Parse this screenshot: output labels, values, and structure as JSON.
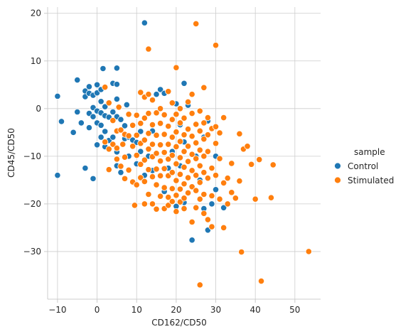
{
  "chart_data": {
    "type": "scatter",
    "xlabel": "CD162/CD50",
    "ylabel": "CD45/CD50",
    "xlim": [
      -12.5,
      56.5
    ],
    "ylim": [
      -40,
      21.3
    ],
    "xticks": [
      -10,
      0,
      10,
      20,
      30,
      40,
      50
    ],
    "yticks": [
      -30,
      -20,
      -10,
      0,
      10,
      20
    ],
    "grid": true,
    "legend": {
      "title": "sample",
      "placement": "right-outside"
    },
    "series": [
      {
        "name": "Control",
        "color": "#1f77b4",
        "points": [
          [
            -10,
            2.6
          ],
          [
            -10,
            -14
          ],
          [
            -9,
            -2.7
          ],
          [
            -6,
            -5
          ],
          [
            -5,
            6
          ],
          [
            -5,
            -0.7
          ],
          [
            -4,
            -3
          ],
          [
            -3,
            3.7
          ],
          [
            -3,
            2.5
          ],
          [
            -3,
            -12.5
          ],
          [
            -2,
            4.6
          ],
          [
            -2,
            3.2
          ],
          [
            -2,
            -1
          ],
          [
            -2,
            -4
          ],
          [
            -1,
            -14.7
          ],
          [
            -1,
            2.8
          ],
          [
            -1,
            0.2
          ],
          [
            -1,
            -1.7
          ],
          [
            0,
            5
          ],
          [
            0,
            3.3
          ],
          [
            0,
            -0.5
          ],
          [
            0,
            -3
          ],
          [
            0,
            -7.6
          ],
          [
            1,
            4
          ],
          [
            1,
            1.5
          ],
          [
            1,
            -0.9
          ],
          [
            1,
            -3.5
          ],
          [
            1,
            -6
          ],
          [
            1.5,
            8.4
          ],
          [
            2,
            0.4
          ],
          [
            2,
            -1.5
          ],
          [
            2,
            -4.8
          ],
          [
            2,
            -8
          ],
          [
            3,
            -1.8
          ],
          [
            3,
            -6.7
          ],
          [
            4,
            5.3
          ],
          [
            4,
            -0.7
          ],
          [
            4,
            -6
          ],
          [
            5,
            8.5
          ],
          [
            5,
            5.1
          ],
          [
            5,
            2
          ],
          [
            5,
            -1.7
          ],
          [
            5,
            -9.1
          ],
          [
            5,
            -12
          ],
          [
            6,
            -2.3
          ],
          [
            6,
            -13.4
          ],
          [
            7,
            -3.6
          ],
          [
            7,
            -6.3
          ],
          [
            7.5,
            0.8
          ],
          [
            8,
            -6
          ],
          [
            8,
            -10
          ],
          [
            9,
            -6.6
          ],
          [
            10,
            -7.1
          ],
          [
            10,
            -11.6
          ],
          [
            11,
            -4.8
          ],
          [
            11,
            -9
          ],
          [
            12,
            18
          ],
          [
            12,
            -6.5
          ],
          [
            12,
            -14
          ],
          [
            13,
            -10
          ],
          [
            14,
            -4.7
          ],
          [
            14,
            -13
          ],
          [
            15,
            3
          ],
          [
            16,
            4
          ],
          [
            17,
            3.2
          ],
          [
            17,
            -17.4
          ],
          [
            18,
            -12.5
          ],
          [
            19,
            -9
          ],
          [
            20,
            1
          ],
          [
            20,
            -5
          ],
          [
            20,
            -20.5
          ],
          [
            21,
            -3.4
          ],
          [
            21,
            -12
          ],
          [
            22,
            5.3
          ],
          [
            22,
            -7
          ],
          [
            22,
            -19.7
          ],
          [
            23,
            0.7
          ],
          [
            24,
            -27.6
          ],
          [
            25,
            -10
          ],
          [
            26,
            -15
          ],
          [
            27,
            -21
          ],
          [
            27,
            -6
          ],
          [
            28,
            -25.5
          ],
          [
            28,
            -2.6
          ],
          [
            29,
            -20
          ],
          [
            30,
            -17
          ],
          [
            30,
            -10
          ],
          [
            32,
            -20.8
          ]
        ]
      },
      {
        "name": "Stimulated",
        "color": "#ff7f0e",
        "points": [
          [
            2,
            4.5
          ],
          [
            2,
            -7
          ],
          [
            3,
            -8.5
          ],
          [
            3,
            1.2
          ],
          [
            3,
            -12.8
          ],
          [
            4,
            -2.5
          ],
          [
            4,
            -7.5
          ],
          [
            5,
            -10.6
          ],
          [
            5,
            -4.7
          ],
          [
            5,
            -8.3
          ],
          [
            5.5,
            0.3
          ],
          [
            6,
            -12.1
          ],
          [
            6,
            -4.5
          ],
          [
            6.5,
            -7.5
          ],
          [
            7,
            -5.4
          ],
          [
            7,
            -10.2
          ],
          [
            7,
            -14.7
          ],
          [
            8,
            -1.2
          ],
          [
            8,
            -5.7
          ],
          [
            8,
            -12.9
          ],
          [
            9,
            -3.5
          ],
          [
            9,
            -7.9
          ],
          [
            9,
            -15.4
          ],
          [
            9.5,
            -20.3
          ],
          [
            10,
            -1.4
          ],
          [
            10,
            -5.6
          ],
          [
            10,
            -9.8
          ],
          [
            10,
            -16
          ],
          [
            11,
            3.4
          ],
          [
            11,
            -3.1
          ],
          [
            11,
            -7.3
          ],
          [
            11,
            -11.7
          ],
          [
            11,
            -14.5
          ],
          [
            12,
            2.4
          ],
          [
            12,
            -2
          ],
          [
            12,
            -6.6
          ],
          [
            12,
            -10.8
          ],
          [
            12,
            -15.3
          ],
          [
            12,
            -20
          ],
          [
            13,
            12.5
          ],
          [
            13,
            3
          ],
          [
            13,
            -1
          ],
          [
            13,
            -5.2
          ],
          [
            13,
            -8.5
          ],
          [
            13,
            -12.8
          ],
          [
            13,
            -18
          ],
          [
            14,
            1.8
          ],
          [
            14,
            -3.4
          ],
          [
            14,
            -7.5
          ],
          [
            14,
            -10.1
          ],
          [
            14,
            -14.3
          ],
          [
            14,
            -20
          ],
          [
            15,
            -0.9
          ],
          [
            15,
            -5.6
          ],
          [
            15,
            -9.4
          ],
          [
            15,
            -12.7
          ],
          [
            15,
            -16
          ],
          [
            15,
            -21.1
          ],
          [
            16,
            0
          ],
          [
            16,
            -3.1
          ],
          [
            16,
            -7.6
          ],
          [
            16,
            -11
          ],
          [
            16,
            -14.1
          ],
          [
            16,
            -18.4
          ],
          [
            17,
            -1.3
          ],
          [
            17,
            -5.4
          ],
          [
            17,
            -9.2
          ],
          [
            17,
            -12.6
          ],
          [
            17,
            -16.6
          ],
          [
            17,
            -21
          ],
          [
            18,
            3.6
          ],
          [
            18,
            -3.7
          ],
          [
            18,
            -7.5
          ],
          [
            18,
            -10.6
          ],
          [
            18,
            -14.1
          ],
          [
            18,
            -18.6
          ],
          [
            18,
            -20.3
          ],
          [
            19,
            1.2
          ],
          [
            19,
            -2.3
          ],
          [
            19,
            -6
          ],
          [
            19,
            -9.8
          ],
          [
            19,
            -13.4
          ],
          [
            19,
            -16.8
          ],
          [
            19,
            -19.5
          ],
          [
            20,
            8.6
          ],
          [
            20,
            -1.2
          ],
          [
            20,
            -4.9
          ],
          [
            20,
            -8
          ],
          [
            20,
            -11.6
          ],
          [
            20,
            -15.1
          ],
          [
            20,
            -18.2
          ],
          [
            20,
            -21.6
          ],
          [
            21,
            0
          ],
          [
            21,
            -3
          ],
          [
            21,
            -6.9
          ],
          [
            21,
            -10.3
          ],
          [
            21,
            -13.8
          ],
          [
            21,
            -16.9
          ],
          [
            21,
            -19.6
          ],
          [
            22,
            -2
          ],
          [
            22,
            -5.5
          ],
          [
            22,
            -9
          ],
          [
            22,
            -12.3
          ],
          [
            22,
            -15.8
          ],
          [
            22,
            -18.8
          ],
          [
            22,
            -21
          ],
          [
            23,
            1.4
          ],
          [
            23,
            -4.3
          ],
          [
            23,
            -7.9
          ],
          [
            23,
            -11.1
          ],
          [
            23,
            -14.5
          ],
          [
            23,
            -17.7
          ],
          [
            24,
            3
          ],
          [
            24,
            -1
          ],
          [
            24,
            -5.8
          ],
          [
            24,
            -9.6
          ],
          [
            24,
            -13
          ],
          [
            24,
            -16.4
          ],
          [
            24,
            -23.8
          ],
          [
            25,
            17.8
          ],
          [
            25,
            -3.3
          ],
          [
            25,
            -7.2
          ],
          [
            25,
            -10.5
          ],
          [
            25,
            -14
          ],
          [
            25,
            -17.2
          ],
          [
            25,
            -20.8
          ],
          [
            26,
            -37
          ],
          [
            26,
            -0.5
          ],
          [
            26,
            -4.7
          ],
          [
            26,
            -8.7
          ],
          [
            26,
            -12
          ],
          [
            26,
            -15.5
          ],
          [
            26,
            -19
          ],
          [
            27,
            4.4
          ],
          [
            27,
            -3
          ],
          [
            27,
            -6.4
          ],
          [
            27,
            -10
          ],
          [
            27,
            -13.4
          ],
          [
            27,
            -18
          ],
          [
            27,
            -22
          ],
          [
            28,
            -1.9
          ],
          [
            28,
            -5.5
          ],
          [
            28,
            -9
          ],
          [
            28,
            -14.6
          ],
          [
            28,
            -23.3
          ],
          [
            29,
            -4.2
          ],
          [
            29,
            -12.5
          ],
          [
            29,
            -18.3
          ],
          [
            29,
            -24.8
          ],
          [
            30,
            13.3
          ],
          [
            30,
            -3.8
          ],
          [
            30,
            -7.3
          ],
          [
            30,
            -14
          ],
          [
            31,
            -5.1
          ],
          [
            31,
            -10.5
          ],
          [
            31,
            -19
          ],
          [
            32,
            -1.9
          ],
          [
            32,
            -15.6
          ],
          [
            32,
            -25
          ],
          [
            33,
            -14.6
          ],
          [
            33,
            -20
          ],
          [
            34,
            -11.5
          ],
          [
            34,
            -17.6
          ],
          [
            35,
            -18.8
          ],
          [
            36,
            -15.2
          ],
          [
            36,
            -5.3
          ],
          [
            36.5,
            -30.1
          ],
          [
            37,
            -8.5
          ],
          [
            38,
            -7.9
          ],
          [
            39,
            -11.7
          ],
          [
            40,
            -19
          ],
          [
            41,
            -10.7
          ],
          [
            41.5,
            -36.2
          ],
          [
            44,
            -18.7
          ],
          [
            44.5,
            -11.8
          ],
          [
            53.5,
            -30
          ]
        ]
      }
    ]
  }
}
